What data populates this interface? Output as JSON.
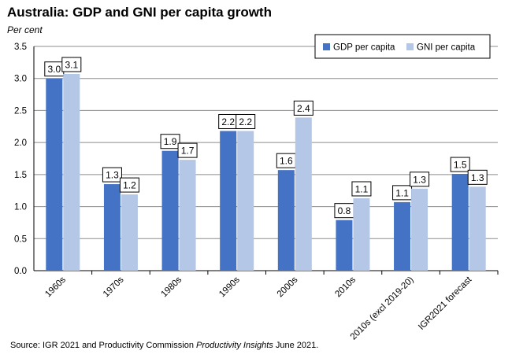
{
  "header": {
    "title": "Australia: GDP and GNI per capita growth",
    "subtitle": "Per cent"
  },
  "source": {
    "prefix": "Source: IGR 2021 and Productivity Commission ",
    "italic": "Productivity Insights",
    "suffix": " June 2021."
  },
  "colors": {
    "gdp": "#4472c4",
    "gni": "#b4c7e7",
    "grid": "#8c8c8c"
  },
  "chart_data": {
    "type": "bar",
    "title": "Australia: GDP and GNI per capita growth",
    "ylabel": "Per cent",
    "ylim": [
      0,
      3.5
    ],
    "ytick_step": 0.5,
    "grid": true,
    "legend_position": "top-right",
    "categories": [
      "1960s",
      "1970s",
      "1980s",
      "1990s",
      "2000s",
      "2010s",
      "2010s (excl 2019-20)",
      "IGR2021 forecast"
    ],
    "series": [
      {
        "name": "GDP per capita",
        "values": [
          3.0,
          1.35,
          1.87,
          2.18,
          1.57,
          0.79,
          1.07,
          1.51
        ],
        "labels": [
          "3.0",
          "1.3",
          "1.9",
          "2.2",
          "1.6",
          "0.8",
          "1.1",
          "1.5"
        ]
      },
      {
        "name": "GNI per capita",
        "values": [
          3.07,
          1.19,
          1.73,
          2.18,
          2.39,
          1.13,
          1.28,
          1.31
        ],
        "labels": [
          "3.1",
          "1.2",
          "1.7",
          "2.2",
          "2.4",
          "1.1",
          "1.3",
          "1.3"
        ]
      }
    ]
  }
}
